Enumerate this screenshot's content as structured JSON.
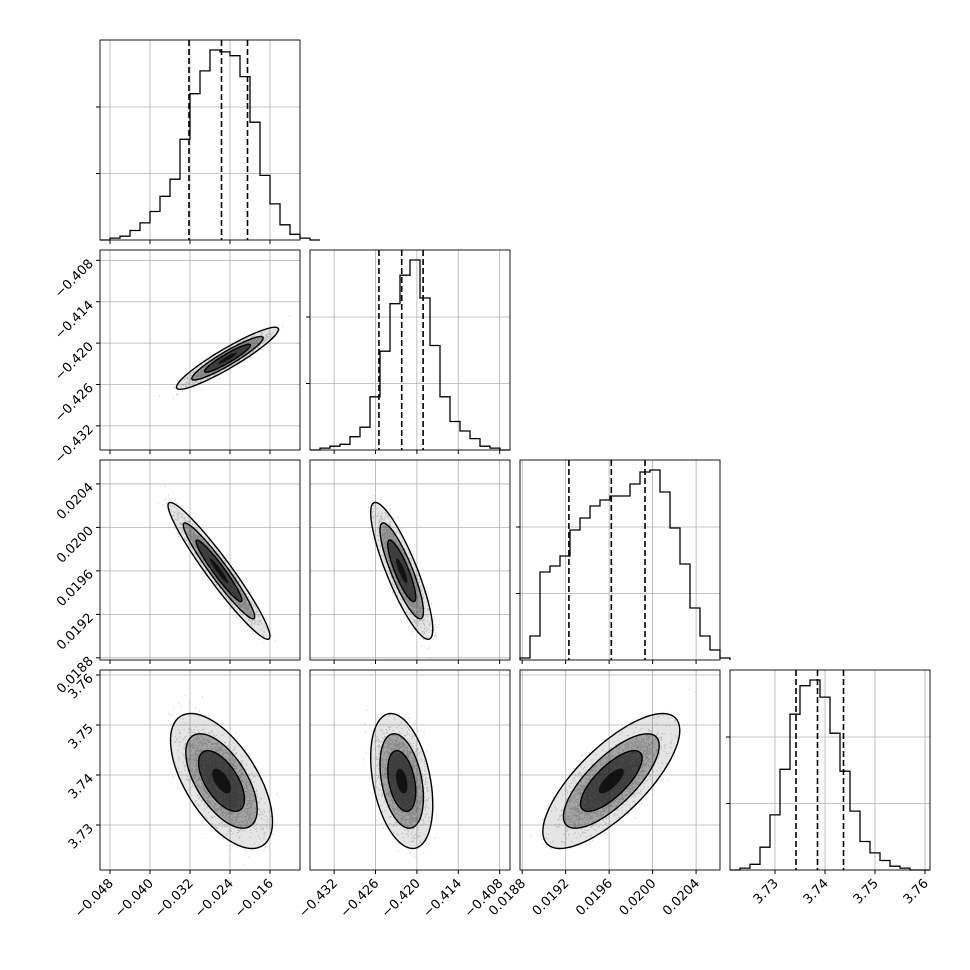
{
  "chart_data": {
    "type": "corner",
    "grid": true,
    "parameters": [
      {
        "range": [
          -0.05,
          -0.01
        ],
        "ticks": [
          -0.048,
          -0.04,
          -0.032,
          -0.024,
          -0.016
        ],
        "tick_labels": [
          "−0.048",
          "−0.040",
          "−0.032",
          "−0.024",
          "−0.016"
        ],
        "quantiles": [
          -0.0322,
          -0.0257,
          -0.0205
        ],
        "histogram": {
          "edges_start": -0.05,
          "bin_width": 0.002,
          "counts": [
            0,
            1,
            2,
            5,
            9,
            15,
            23,
            32,
            53,
            77,
            89,
            100,
            99,
            97,
            86,
            62,
            34,
            19,
            8,
            3,
            1,
            0
          ]
        }
      },
      {
        "range": [
          -0.4355,
          -0.4065
        ],
        "ticks": [
          -0.432,
          -0.426,
          -0.42,
          -0.414,
          -0.408
        ],
        "tick_labels": [
          "−0.432",
          "−0.426",
          "−0.420",
          "−0.414",
          "−0.408"
        ],
        "quantiles": [
          -0.4255,
          -0.4222,
          -0.4191
        ],
        "histogram": {
          "edges_start": -0.4355,
          "bin_width": 0.00145,
          "counts": [
            0,
            1,
            2,
            3,
            7,
            12,
            28,
            52,
            77,
            92,
            100,
            80,
            55,
            28,
            15,
            10,
            6,
            2,
            1,
            0
          ]
        }
      },
      {
        "range": [
          0.01878,
          0.02062
        ],
        "ticks": [
          0.0188,
          0.0192,
          0.0196,
          0.02,
          0.0204
        ],
        "tick_labels": [
          "0.0188",
          "0.0192",
          "0.0196",
          "0.0200",
          "0.0204"
        ],
        "quantiles": [
          0.01923,
          0.01962,
          0.01993
        ],
        "histogram": {
          "edges_start": 0.01878,
          "bin_width": 9.2e-05,
          "counts": [
            1,
            12,
            44,
            47,
            52,
            65,
            71,
            77,
            80,
            82,
            82,
            88,
            94,
            95,
            84,
            66,
            48,
            26,
            12,
            5,
            1
          ]
        }
      },
      {
        "range": [
          3.721,
          3.761
        ],
        "ticks": [
          3.73,
          3.74,
          3.75,
          3.76
        ],
        "tick_labels": [
          "3.73",
          "3.74",
          "3.75",
          "3.76"
        ],
        "quantiles": [
          3.7342,
          3.7385,
          3.7437
        ],
        "histogram": {
          "edges_start": 3.721,
          "bin_width": 0.002,
          "counts": [
            0,
            1,
            3,
            12,
            29,
            53,
            82,
            97,
            100,
            91,
            72,
            52,
            31,
            15,
            9,
            5,
            2,
            1,
            0,
            0
          ]
        }
      }
    ],
    "contours": [
      {
        "row": 1,
        "col": 0,
        "rings": [
          {
            "cx": -0.0245,
            "cy": -0.4222,
            "sx": 0.0034,
            "sy": 0.0015,
            "rho": 0.93,
            "k": 1.35,
            "level": "inner"
          },
          {
            "cx": -0.0245,
            "cy": -0.4222,
            "sx": 0.0034,
            "sy": 0.0015,
            "rho": 0.93,
            "k": 2.1,
            "level": "middle"
          },
          {
            "cx": -0.0245,
            "cy": -0.4222,
            "sx": 0.0034,
            "sy": 0.0015,
            "rho": 0.93,
            "k": 3.0,
            "level": "outer"
          }
        ]
      },
      {
        "row": 2,
        "col": 0,
        "rings": [
          {
            "cx": -0.0262,
            "cy": 0.0196,
            "sx": 0.0034,
            "sy": 0.00021,
            "rho": -0.955,
            "k": 1.35,
            "level": "inner"
          },
          {
            "cx": -0.0262,
            "cy": 0.0196,
            "sx": 0.0034,
            "sy": 0.00021,
            "rho": -0.955,
            "k": 2.1,
            "level": "middle"
          },
          {
            "cx": -0.0262,
            "cy": 0.0196,
            "sx": 0.0034,
            "sy": 0.00021,
            "rho": -0.955,
            "k": 3.0,
            "level": "outer"
          }
        ]
      },
      {
        "row": 2,
        "col": 1,
        "rings": [
          {
            "cx": -0.4222,
            "cy": 0.0196,
            "sx": 0.0015,
            "sy": 0.00021,
            "rho": -0.85,
            "k": 1.35,
            "level": "inner"
          },
          {
            "cx": -0.4222,
            "cy": 0.0196,
            "sx": 0.0015,
            "sy": 0.00021,
            "rho": -0.85,
            "k": 2.1,
            "level": "middle"
          },
          {
            "cx": -0.4222,
            "cy": 0.0196,
            "sx": 0.0015,
            "sy": 0.00021,
            "rho": -0.85,
            "k": 3.0,
            "level": "outer"
          }
        ]
      },
      {
        "row": 3,
        "col": 0,
        "rings": [
          {
            "cx": -0.0257,
            "cy": 3.7388,
            "sx": 0.0034,
            "sy": 0.0045,
            "rho": -0.6,
            "k": 1.35,
            "level": "inner"
          },
          {
            "cx": -0.0257,
            "cy": 3.7388,
            "sx": 0.0034,
            "sy": 0.0045,
            "rho": -0.6,
            "k": 2.1,
            "level": "middle"
          },
          {
            "cx": -0.0257,
            "cy": 3.7388,
            "sx": 0.0034,
            "sy": 0.0045,
            "rho": -0.6,
            "k": 3.0,
            "level": "outer"
          }
        ]
      },
      {
        "row": 3,
        "col": 1,
        "rings": [
          {
            "cx": -0.4222,
            "cy": 3.7388,
            "sx": 0.0015,
            "sy": 0.0045,
            "rho": -0.35,
            "k": 1.35,
            "level": "inner"
          },
          {
            "cx": -0.4222,
            "cy": 3.7388,
            "sx": 0.0015,
            "sy": 0.0045,
            "rho": -0.35,
            "k": 2.1,
            "level": "middle"
          },
          {
            "cx": -0.4222,
            "cy": 3.7388,
            "sx": 0.0015,
            "sy": 0.0045,
            "rho": -0.35,
            "k": 3.0,
            "level": "outer"
          }
        ]
      },
      {
        "row": 3,
        "col": 2,
        "rings": [
          {
            "cx": 0.01962,
            "cy": 3.7388,
            "sx": 0.00021,
            "sy": 0.0045,
            "rho": 0.75,
            "k": 1.35,
            "level": "inner"
          },
          {
            "cx": 0.01962,
            "cy": 3.7388,
            "sx": 0.00021,
            "sy": 0.0045,
            "rho": 0.75,
            "k": 2.1,
            "level": "middle"
          },
          {
            "cx": 0.01962,
            "cy": 3.7388,
            "sx": 0.00021,
            "sy": 0.0045,
            "rho": 0.75,
            "k": 3.0,
            "level": "outer"
          }
        ]
      }
    ],
    "colors": {
      "line": "#000000",
      "grid": "#b0b0b0",
      "points": "#9a9a9a",
      "density": "#000000"
    }
  }
}
